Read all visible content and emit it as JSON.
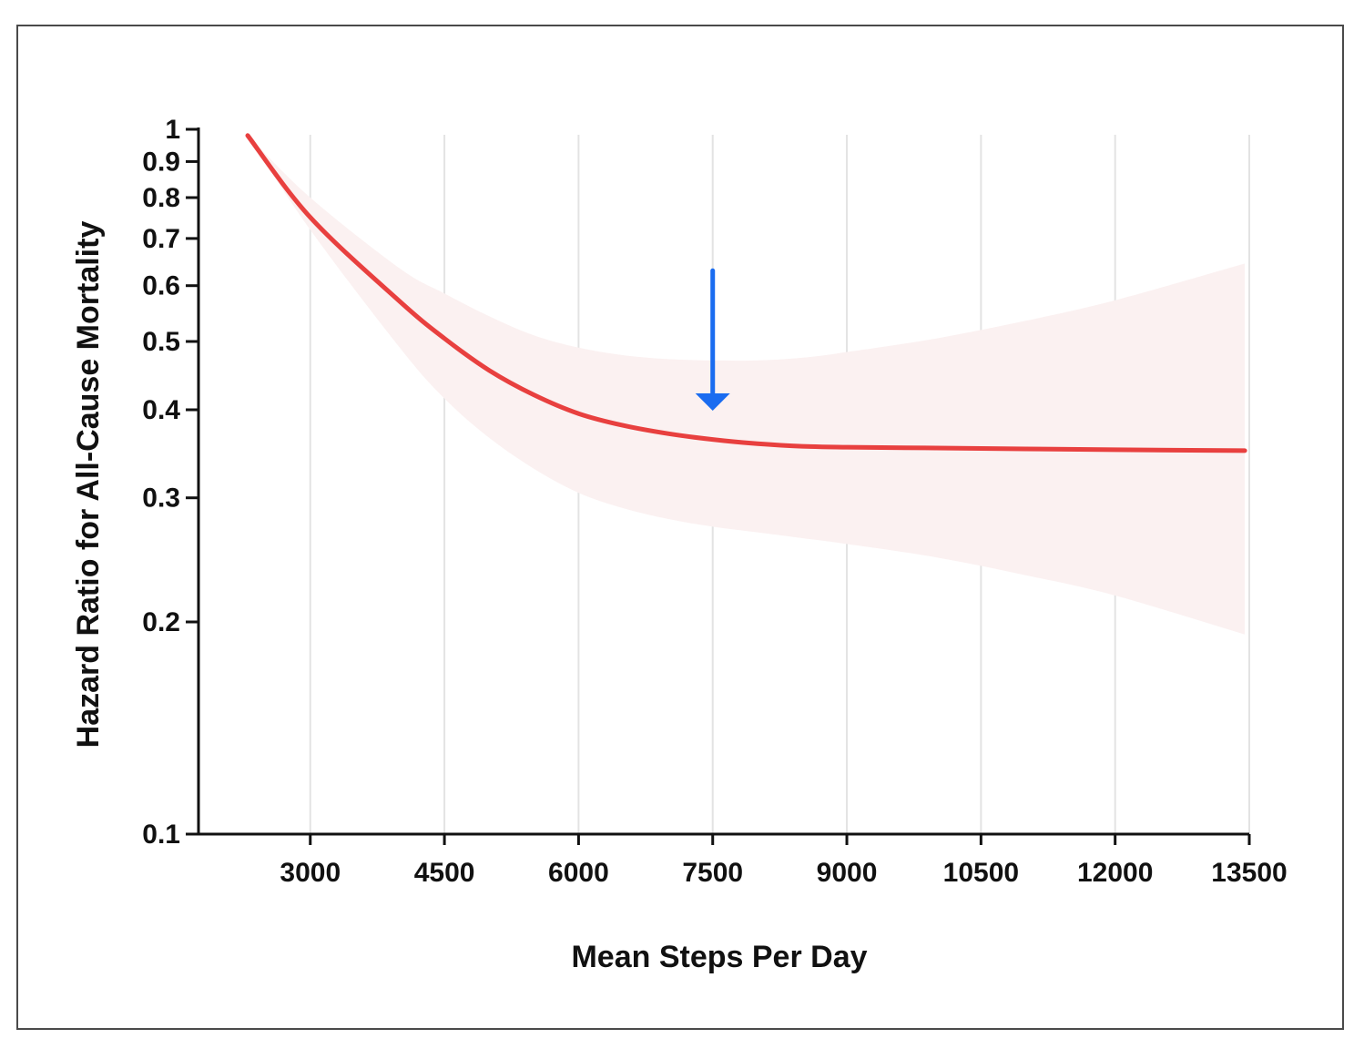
{
  "chart_data": {
    "type": "line",
    "xlabel": "Mean Steps Per Day",
    "ylabel": "Hazard Ratio for All-Cause Mortality",
    "x_ticks": [
      "3000",
      "4500",
      "6000",
      "7500",
      "9000",
      "10500",
      "12000",
      "13500"
    ],
    "y_ticks": [
      "0.1",
      "0.2",
      "0.3",
      "0.4",
      "0.5",
      "0.6",
      "0.7",
      "0.8",
      "0.9",
      "1"
    ],
    "y_scale": "log",
    "xlim": [
      1750,
      13500
    ],
    "ylim": [
      0.1,
      1
    ],
    "grid": "vertical",
    "series": [
      {
        "color": "#e8403f",
        "x": [
          2300,
          3000,
          4000,
          4500,
          5000,
          5500,
          6000,
          6500,
          7000,
          7500,
          8000,
          8500,
          9000,
          10000,
          11000,
          12000,
          13450
        ],
        "y": [
          0.98,
          0.75,
          0.57,
          0.505,
          0.455,
          0.42,
          0.395,
          0.38,
          0.37,
          0.363,
          0.358,
          0.355,
          0.354,
          0.353,
          0.352,
          0.351,
          0.35
        ],
        "ci_lower": [
          0.98,
          0.72,
          0.49,
          0.415,
          0.365,
          0.33,
          0.305,
          0.29,
          0.28,
          0.273,
          0.268,
          0.263,
          0.258,
          0.247,
          0.233,
          0.218,
          0.192
        ],
        "ci_upper": [
          0.98,
          0.8,
          0.635,
          0.585,
          0.543,
          0.51,
          0.49,
          0.478,
          0.472,
          0.47,
          0.47,
          0.474,
          0.483,
          0.505,
          0.535,
          0.572,
          0.645
        ]
      }
    ],
    "annotations": [
      {
        "type": "arrow",
        "x": 7500,
        "y_from": 0.63,
        "y_to": 0.4,
        "color": "#1a6cf0"
      }
    ],
    "ci_color": "#fbf1f1"
  }
}
